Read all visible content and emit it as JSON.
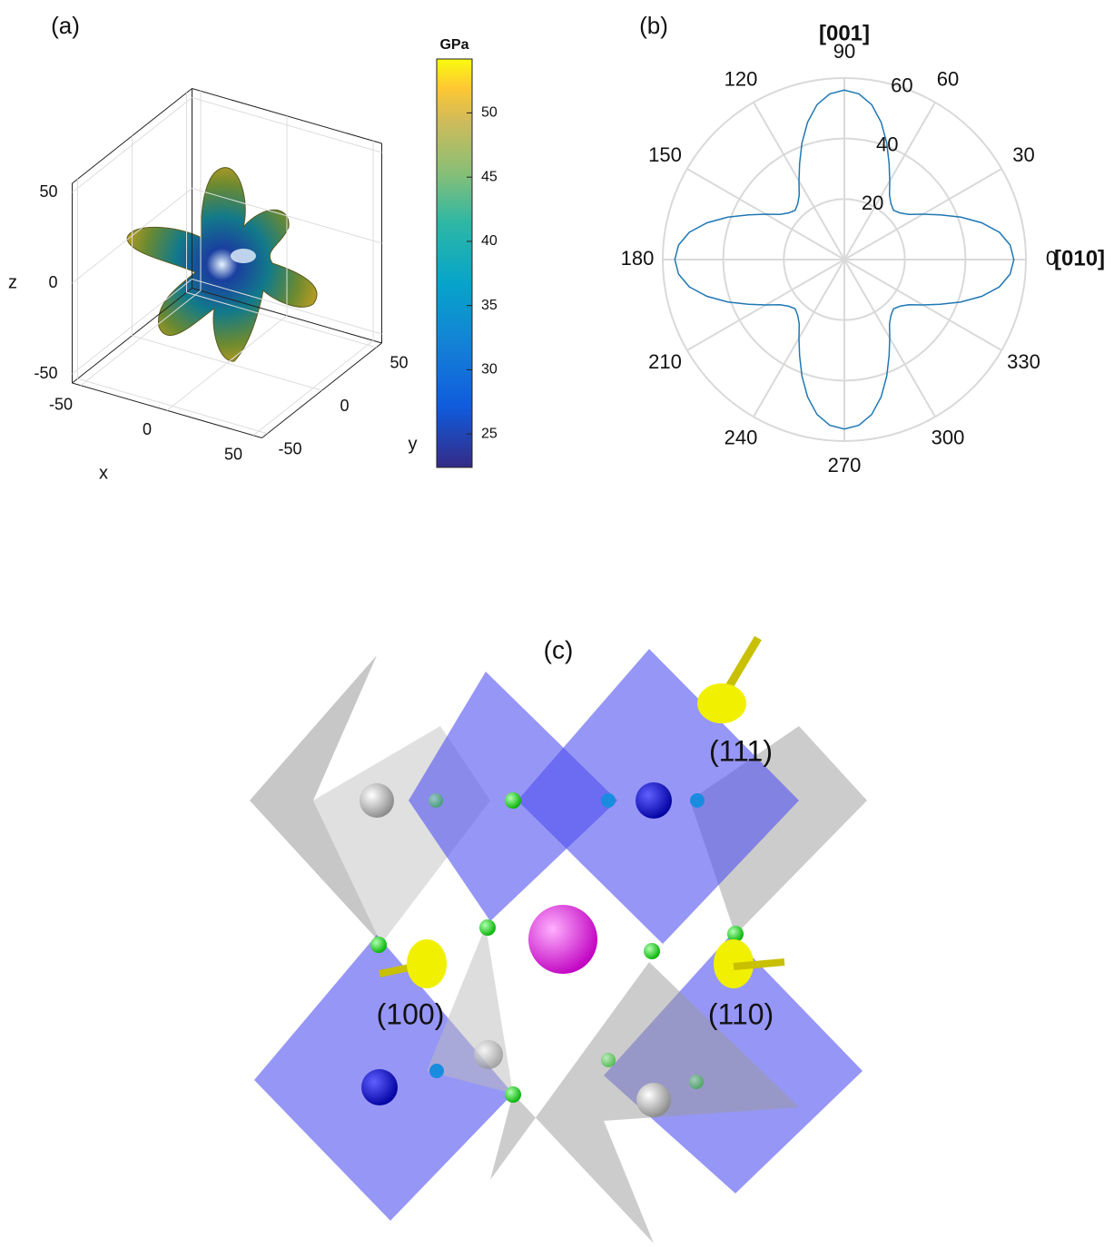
{
  "chart_data": [
    {
      "type": "surface3d",
      "panel_label": "(a)",
      "xlabel": "x",
      "ylabel": "y",
      "zlabel": "z",
      "xticks": [
        -50,
        0,
        50
      ],
      "yticks": [
        -50,
        0,
        50
      ],
      "zticks": [
        -50,
        0,
        50
      ],
      "xlim": [
        -55,
        55
      ],
      "ylim": [
        -55,
        55
      ],
      "zlim": [
        -55,
        55
      ],
      "colorbar": {
        "label": "GPa",
        "clim": [
          22.4,
          54.2
        ],
        "ticks": [
          25,
          30,
          35,
          40,
          45,
          50
        ]
      }
    },
    {
      "type": "polar",
      "panel_label": "(b)",
      "x_axis_label": "[010]",
      "y_axis_label": "[001]",
      "rlim": [
        0,
        60
      ],
      "rticks": [
        20,
        40,
        60
      ],
      "thetaticks": [
        0,
        30,
        60,
        90,
        120,
        150,
        180,
        210,
        240,
        270,
        300,
        330
      ],
      "color": "#1f77b4",
      "grid": true,
      "theta": [
        0,
        5,
        10,
        15,
        20,
        25,
        30,
        35,
        40,
        45,
        50,
        55,
        60,
        65,
        70,
        75,
        80,
        85,
        90,
        95,
        100,
        105,
        110,
        115,
        120,
        125,
        130,
        135,
        140,
        145,
        150,
        155,
        160,
        165,
        170,
        175,
        180,
        185,
        190,
        195,
        200,
        205,
        210,
        215,
        220,
        225,
        230,
        235,
        240,
        245,
        250,
        255,
        260,
        265,
        270,
        275,
        280,
        285,
        290,
        295,
        300,
        305,
        310,
        315,
        320,
        325,
        330,
        335,
        340,
        345,
        350,
        355
      ],
      "values": [
        56,
        55,
        52,
        47,
        41,
        35,
        30,
        26,
        24,
        23,
        24,
        26,
        30,
        35,
        41,
        47,
        52,
        55,
        56,
        55,
        52,
        47,
        41,
        35,
        30,
        26,
        24,
        23,
        24,
        26,
        30,
        35,
        41,
        47,
        52,
        55,
        56,
        55,
        52,
        47,
        41,
        35,
        30,
        26,
        24,
        23,
        24,
        26,
        30,
        35,
        41,
        47,
        52,
        55,
        56,
        55,
        52,
        47,
        41,
        35,
        30,
        26,
        24,
        23,
        24,
        26,
        30,
        35,
        41,
        47,
        52,
        55
      ]
    }
  ],
  "structure": {
    "label": "(c)",
    "directions": [
      "(111)",
      "(100)",
      "(110)"
    ]
  }
}
